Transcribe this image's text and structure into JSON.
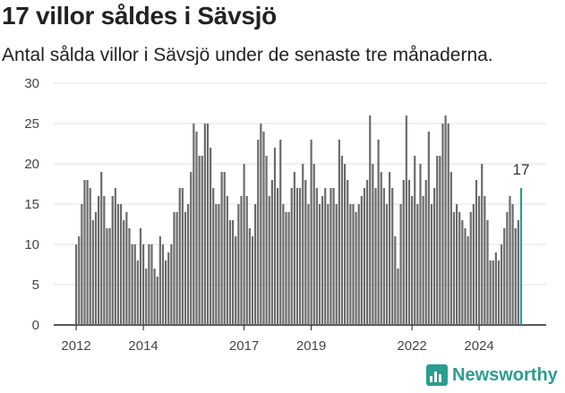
{
  "title": "17 villor såldes i Sävsjö",
  "subtitle": "Antal sålda villor i Sävsjö under de senaste tre månaderna.",
  "brand": "Newsworthy",
  "colors": {
    "bar": "#6b6b6e",
    "highlight": "#2a9d8f",
    "grid": "#e2e2e2",
    "axis": "#222222"
  },
  "chart_data": {
    "type": "bar",
    "ylim": [
      0,
      30
    ],
    "yticks": [
      "0",
      "5",
      "10",
      "15",
      "20",
      "25",
      "30"
    ],
    "xticks": [
      {
        "label": "2012",
        "index": 0
      },
      {
        "label": "2014",
        "index": 24
      },
      {
        "label": "2017",
        "index": 60
      },
      {
        "label": "2019",
        "index": 84
      },
      {
        "label": "2022",
        "index": 120
      },
      {
        "label": "2024",
        "index": 144
      }
    ],
    "values": [
      10,
      11,
      15,
      18,
      18,
      17,
      13,
      14,
      16,
      19,
      16,
      12,
      12,
      16,
      17,
      15,
      15,
      13,
      14,
      12,
      10,
      10,
      8,
      12,
      10,
      7,
      10,
      10,
      7,
      6,
      11,
      10,
      8,
      9,
      10,
      14,
      14,
      17,
      17,
      14,
      15,
      19,
      25,
      24,
      21,
      21,
      25,
      25,
      22,
      17,
      15,
      15,
      19,
      19,
      16,
      13,
      13,
      11,
      15,
      16,
      20,
      16,
      12,
      11,
      15,
      23,
      25,
      24,
      21,
      16,
      18,
      22,
      17,
      23,
      15,
      14,
      14,
      17,
      19,
      17,
      17,
      20,
      18,
      15,
      23,
      20,
      17,
      15,
      16,
      17,
      15,
      17,
      17,
      15,
      23,
      21,
      20,
      18,
      15,
      15,
      14,
      15,
      16,
      17,
      18,
      26,
      20,
      17,
      23,
      19,
      17,
      15,
      19,
      17,
      11,
      7,
      15,
      18,
      26,
      18,
      16,
      21,
      15,
      20,
      16,
      18,
      24,
      15,
      17,
      21,
      21,
      25,
      26,
      25,
      19,
      14,
      15,
      14,
      13,
      12,
      11,
      14,
      15,
      18,
      16,
      20,
      16,
      13,
      8,
      8,
      9,
      8,
      10,
      12,
      14,
      16,
      15,
      12,
      13,
      17
    ],
    "highlight_index": 159,
    "highlight_label": "17"
  }
}
